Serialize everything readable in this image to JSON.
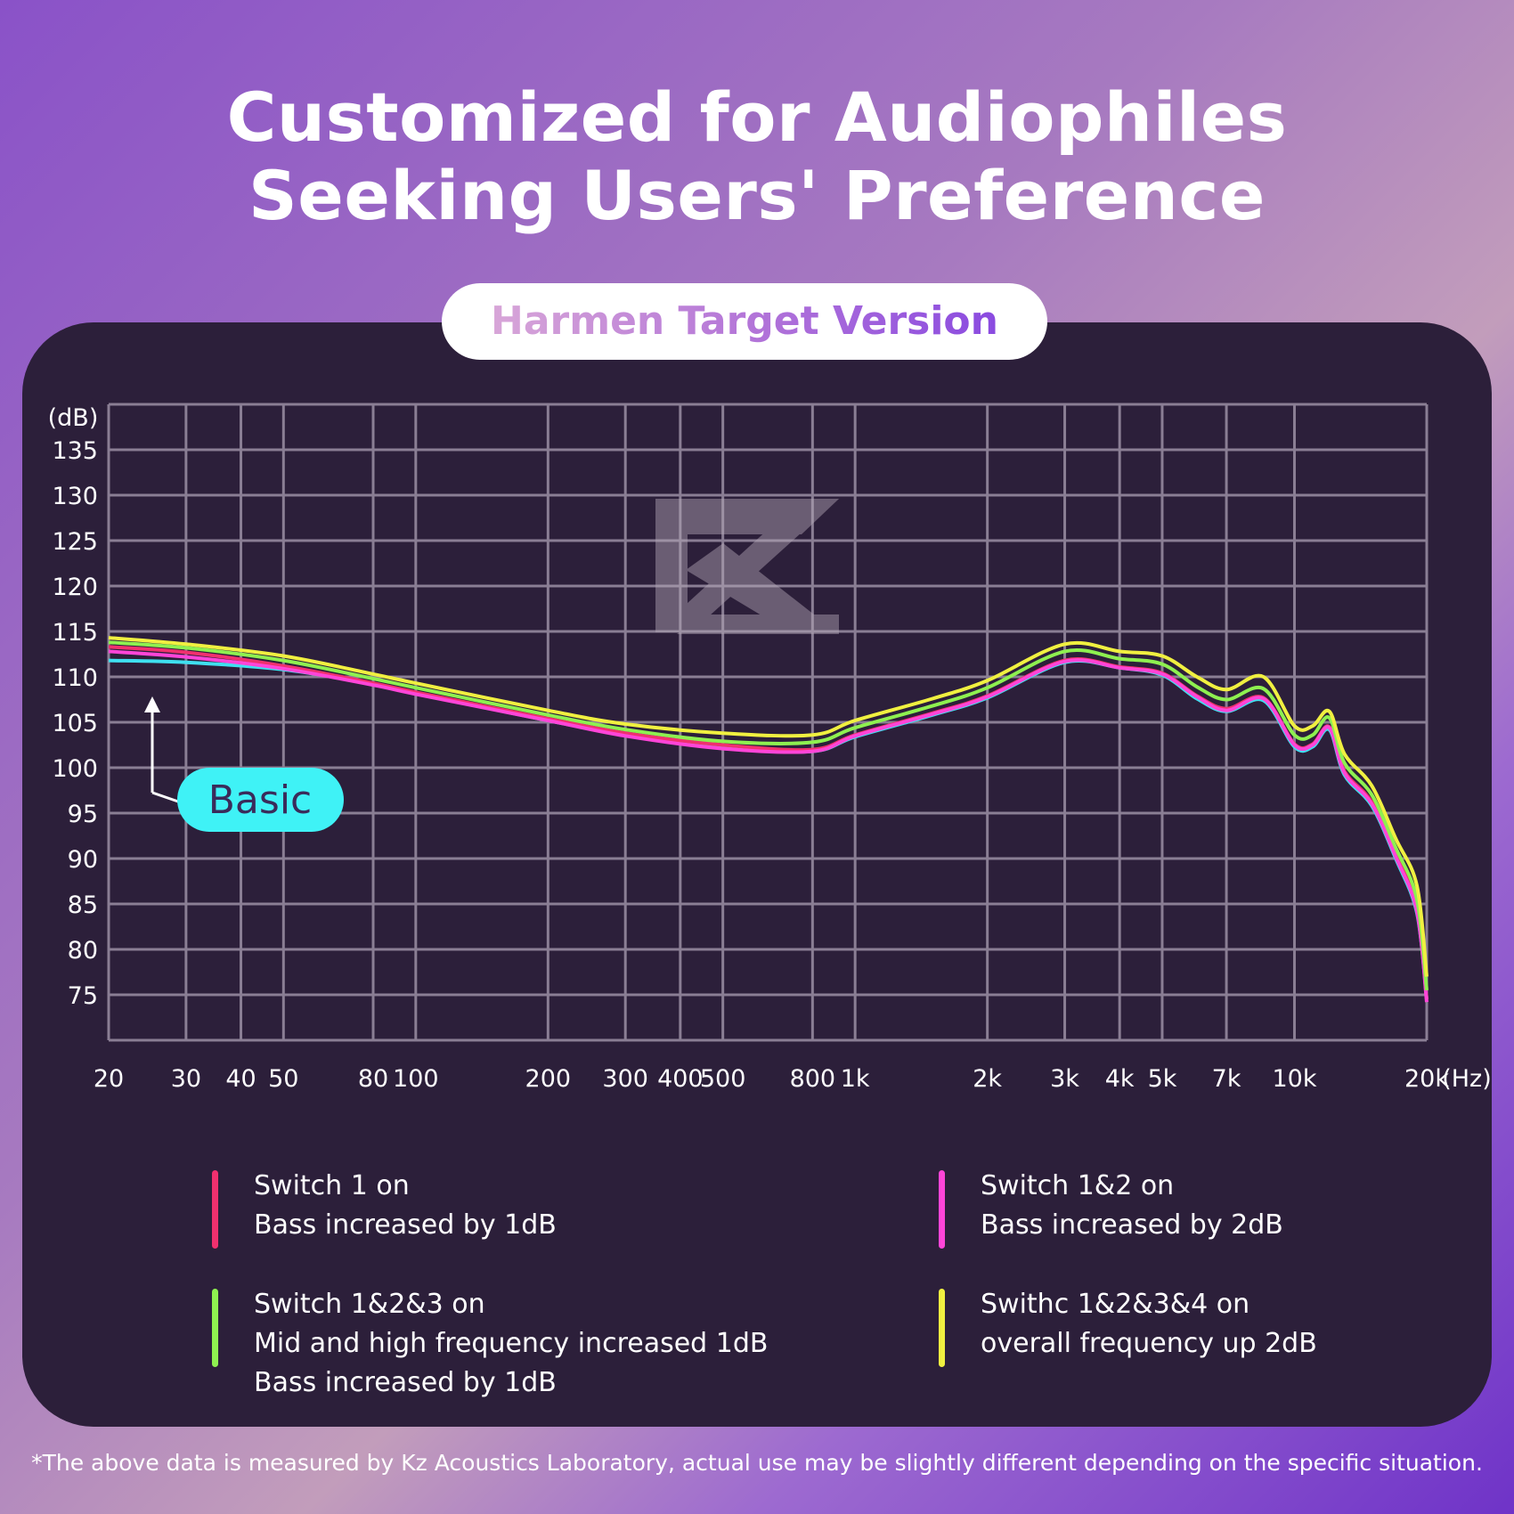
{
  "title": "Customized for Audiophiles\nSeeking Users' Preference",
  "badge": "Harmen Target Version",
  "chart_data": {
    "type": "line",
    "y_unit_label": "(dB)",
    "x_unit_label": "(Hz)",
    "x_scale": "log",
    "xlim": [
      20,
      20000
    ],
    "ylim": [
      70,
      140
    ],
    "grid": true,
    "x_tick_values": [
      20,
      30,
      40,
      50,
      80,
      100,
      200,
      300,
      400,
      500,
      800,
      1000,
      2000,
      3000,
      4000,
      5000,
      7000,
      10000,
      20000
    ],
    "x_tick_labels": [
      "20",
      "30",
      "40",
      "50",
      "80",
      "100",
      "200",
      "300",
      "400",
      "500",
      "800",
      "1k",
      "2k",
      "3k",
      "4k",
      "5k",
      "7k",
      "10k",
      "20k"
    ],
    "y_ticks": [
      75,
      80,
      85,
      90,
      95,
      100,
      105,
      110,
      115,
      120,
      125,
      130,
      135
    ],
    "x": [
      20,
      30,
      50,
      80,
      100,
      200,
      300,
      500,
      800,
      1000,
      1500,
      2000,
      3000,
      4000,
      5000,
      6000,
      7000,
      8500,
      10000,
      11000,
      12000,
      13000,
      15000,
      17000,
      19000,
      20000
    ],
    "series": [
      {
        "color": "#3fe0f0",
        "values": [
          111.8,
          111.6,
          110.8,
          109.2,
          108.2,
          105.2,
          103.6,
          102.2,
          101.8,
          103.4,
          105.8,
          107.7,
          111.6,
          111.0,
          110.2,
          107.6,
          106.2,
          107.4,
          102.3,
          102.3,
          104.2,
          99.2,
          95.8,
          90.0,
          84.0,
          74.5
        ]
      },
      {
        "color": "#f0306e",
        "values": [
          113.3,
          112.7,
          111.2,
          109.3,
          108.3,
          105.4,
          103.8,
          102.5,
          102.0,
          103.6,
          106.0,
          107.9,
          111.8,
          111.1,
          110.4,
          107.9,
          106.5,
          107.7,
          102.6,
          102.6,
          104.5,
          99.6,
          96.2,
          90.4,
          84.5,
          74.5
        ]
      },
      {
        "color": "#ff45d8",
        "values": [
          112.8,
          112.2,
          110.9,
          109.1,
          108.1,
          105.2,
          103.5,
          102.1,
          101.8,
          103.5,
          105.9,
          107.8,
          111.7,
          111.0,
          110.3,
          107.8,
          106.3,
          107.6,
          102.5,
          102.5,
          104.4,
          99.4,
          96.0,
          90.2,
          84.2,
          74.2
        ]
      },
      {
        "color": "#8ef050",
        "values": [
          113.8,
          113.2,
          111.8,
          109.8,
          108.8,
          105.8,
          104.2,
          102.9,
          102.8,
          104.4,
          106.8,
          108.8,
          112.8,
          112.0,
          111.4,
          108.9,
          107.5,
          108.7,
          103.6,
          103.6,
          105.5,
          100.5,
          97.0,
          91.2,
          85.5,
          75.5
        ]
      },
      {
        "color": "#f0f040",
        "values": [
          114.3,
          113.6,
          112.3,
          110.3,
          109.3,
          106.3,
          104.8,
          103.8,
          103.6,
          105.2,
          107.6,
          109.6,
          113.6,
          112.8,
          112.3,
          110.0,
          108.6,
          110.0,
          104.6,
          104.6,
          106.2,
          101.5,
          98.0,
          92.2,
          87.0,
          77.0
        ]
      }
    ],
    "annotation": "Basic"
  },
  "legend": [
    {
      "color": "#f0306e",
      "lines": [
        "Switch 1 on",
        "Bass increased by 1dB"
      ]
    },
    {
      "color": "#ff45d8",
      "lines": [
        "Switch 1&2 on",
        "Bass increased by 2dB"
      ]
    },
    {
      "color": "#8ef050",
      "lines": [
        "Switch 1&2&3 on",
        "Mid and high frequency increased 1dB",
        "Bass increased by 1dB"
      ]
    },
    {
      "color": "#f0f040",
      "lines": [
        "Swithc 1&2&3&4 on",
        "overall frequency up 2dB"
      ]
    }
  ],
  "footnote": "*The above data is measured by Kz Acoustics Laboratory, actual use may be slightly different depending on the specific situation."
}
